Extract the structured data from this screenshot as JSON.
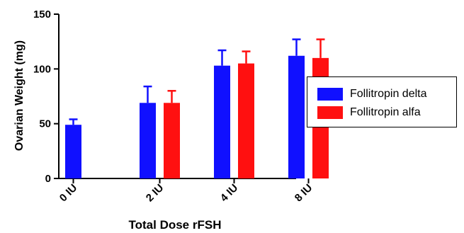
{
  "chart_data": {
    "type": "bar",
    "title": "",
    "xlabel": "Total Dose rFSH",
    "ylabel": "Ovarian Weight (mg)",
    "ylim": [
      0,
      150
    ],
    "yticks": [
      "0",
      "50",
      "100",
      "150"
    ],
    "categories": [
      "0 IU",
      "2 IU",
      "4 IU",
      "8 IU"
    ],
    "series": [
      {
        "name": "Follitropin delta",
        "color": "#1010ff",
        "values": [
          49,
          69,
          103,
          112
        ],
        "errors": [
          5,
          15,
          14,
          15
        ]
      },
      {
        "name": "Follitropin alfa",
        "color": "#ff1010",
        "values": [
          null,
          69,
          105,
          110
        ],
        "errors": [
          null,
          11,
          11,
          17
        ]
      }
    ],
    "legend_position": "right",
    "grid": false
  }
}
